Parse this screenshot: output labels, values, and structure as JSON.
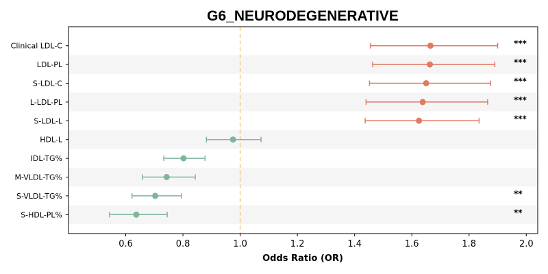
{
  "chart_data": {
    "type": "scatter",
    "title": "G6_NEURODEGENERATIVE",
    "xlabel": "Odds Ratio (OR)",
    "ylabel": "",
    "xlim": [
      0.4,
      2.04
    ],
    "xticks": [
      0.6,
      0.8,
      1.0,
      1.2,
      1.4,
      1.6,
      1.8,
      2.0
    ],
    "xtick_labels": [
      "0.6",
      "0.8",
      "1.0",
      "1.2",
      "1.4",
      "1.6",
      "1.8",
      "2.0"
    ],
    "reference_line": 1.0,
    "grid": false,
    "colors": {
      "positive": "#e07b63",
      "negative": "#7fb59a",
      "reference": "#f5c987",
      "stripe": "#f5f5f5"
    },
    "rows": [
      {
        "label": "Clinical LDL-C",
        "or": 1.665,
        "ci_low": 1.455,
        "ci_high": 1.9,
        "sig": "***",
        "direction": "positive"
      },
      {
        "label": "LDL-PL",
        "or": 1.663,
        "ci_low": 1.463,
        "ci_high": 1.89,
        "sig": "***",
        "direction": "positive"
      },
      {
        "label": "S-LDL-C",
        "or": 1.65,
        "ci_low": 1.452,
        "ci_high": 1.875,
        "sig": "***",
        "direction": "positive"
      },
      {
        "label": "L-LDL-PL",
        "or": 1.638,
        "ci_low": 1.44,
        "ci_high": 1.865,
        "sig": "***",
        "direction": "positive"
      },
      {
        "label": "S-LDL-L",
        "or": 1.625,
        "ci_low": 1.437,
        "ci_high": 1.835,
        "sig": "***",
        "direction": "positive"
      },
      {
        "label": "HDL-L",
        "or": 0.975,
        "ci_low": 0.882,
        "ci_high": 1.073,
        "sig": "",
        "direction": "negative"
      },
      {
        "label": "IDL-TG%",
        "or": 0.802,
        "ci_low": 0.733,
        "ci_high": 0.877,
        "sig": "",
        "direction": "negative"
      },
      {
        "label": "M-VLDL-TG%",
        "or": 0.743,
        "ci_low": 0.658,
        "ci_high": 0.843,
        "sig": "",
        "direction": "negative"
      },
      {
        "label": "S-VLDL-TG%",
        "or": 0.703,
        "ci_low": 0.622,
        "ci_high": 0.795,
        "sig": "**",
        "direction": "negative"
      },
      {
        "label": "S-HDL-PL%",
        "or": 0.637,
        "ci_low": 0.543,
        "ci_high": 0.745,
        "sig": "**",
        "direction": "negative"
      }
    ]
  }
}
